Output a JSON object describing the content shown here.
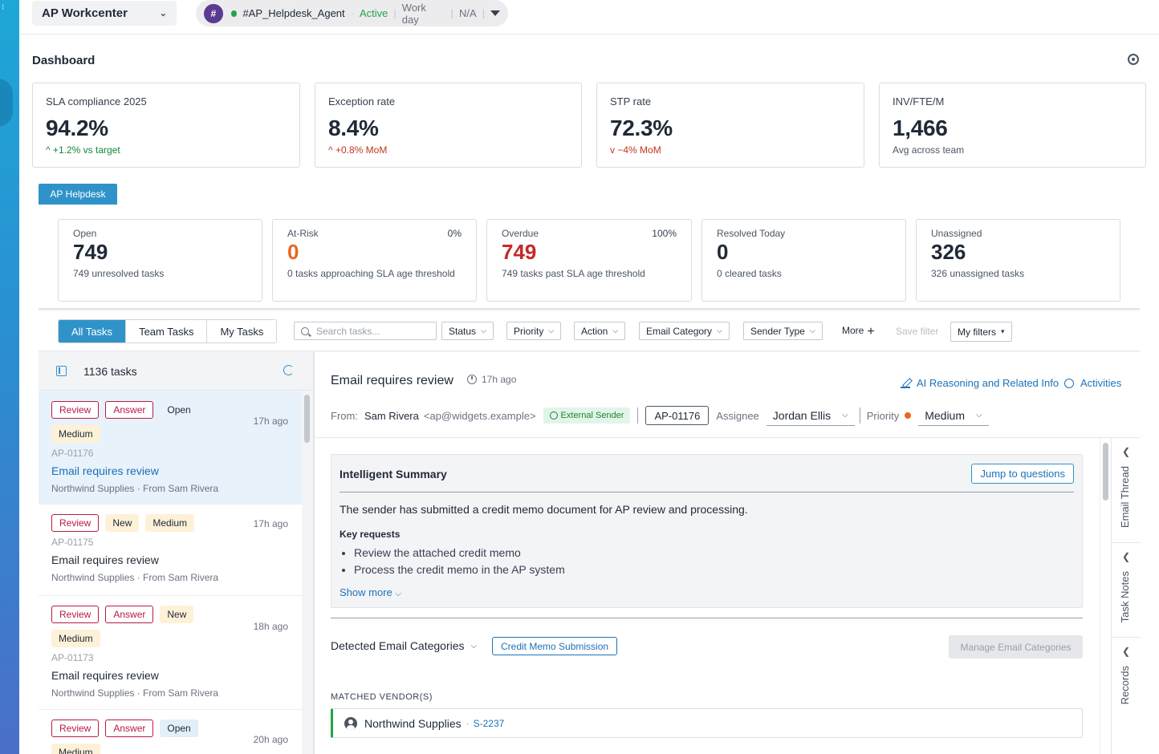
{
  "topbar": {
    "workcenter": "AP Workcenter",
    "agent_initial": "#",
    "agent_name": "#AP_Helpdesk_Agent",
    "status": "Active",
    "workday": "Work day",
    "na": "N/A"
  },
  "dashboard": {
    "title": "Dashboard",
    "kpis": [
      {
        "label": "SLA compliance 2025",
        "value": "94.2%",
        "delta": "+1.2% vs target",
        "arrow": "^"
      },
      {
        "label": "Exception rate",
        "value": "8.4%",
        "delta": "+0.8% MoM",
        "arrow": "^"
      },
      {
        "label": "STP rate",
        "value": "72.3%",
        "delta": "−4% MoM",
        "arrow": "v"
      },
      {
        "label": "INV/FTE/M",
        "value": "1,466",
        "delta": "Avg across team"
      }
    ]
  },
  "helpdesk": {
    "tab": "AP Helpdesk",
    "stats": [
      {
        "label": "Open",
        "value": "749",
        "sub": "749 unresolved tasks",
        "pct": ""
      },
      {
        "label": "At-Risk",
        "value": "0",
        "sub": "0 tasks approaching SLA age threshold",
        "pct": "0%"
      },
      {
        "label": "Overdue",
        "value": "749",
        "sub": "749 tasks past SLA age threshold",
        "pct": "100%"
      },
      {
        "label": "Resolved Today",
        "value": "0",
        "sub": "0 cleared tasks",
        "pct": ""
      },
      {
        "label": "Unassigned",
        "value": "326",
        "sub": "326 unassigned tasks",
        "pct": ""
      }
    ]
  },
  "filters": {
    "tabs": [
      "All Tasks",
      "Team Tasks",
      "My Tasks"
    ],
    "search_placeholder": "Search tasks...",
    "dropdowns": [
      "Status",
      "Priority",
      "Action",
      "Email Category",
      "Sender Type"
    ],
    "more": "More",
    "save_filter": "Save filter",
    "my_filters": "My filters"
  },
  "task_list": {
    "count": "1136 tasks",
    "items": [
      {
        "tags": [
          "Review",
          "Answer",
          "Open",
          "Medium"
        ],
        "time": "17h ago",
        "id": "AP-01176",
        "title": "Email requires review",
        "sub": "Northwind Supplies · From Sam Rivera"
      },
      {
        "tags": [
          "Review",
          "New",
          "Medium"
        ],
        "time": "17h ago",
        "id": "AP-01175",
        "title": "Email requires review",
        "sub": "Northwind Supplies · From Sam Rivera"
      },
      {
        "tags": [
          "Review",
          "Answer",
          "New",
          "Medium"
        ],
        "time": "18h ago",
        "id": "AP-01173",
        "title": "Email requires review",
        "sub": "Northwind Supplies · From Sam Rivera"
      },
      {
        "tags": [
          "Review",
          "Answer",
          "Open",
          "Medium"
        ],
        "time": "20h ago",
        "id": "",
        "title": "",
        "sub": ""
      }
    ]
  },
  "detail": {
    "title": "Email requires review",
    "time": "17h ago",
    "ai_link": "AI Reasoning and Related Info",
    "activities": "Activities",
    "from_label": "From:",
    "from_name": "Sam Rivera",
    "from_email": "<ap@widgets.example>",
    "external_badge": "External Sender",
    "ticket_id": "AP-01176",
    "assignee_label": "Assignee",
    "assignee": "Jordan Ellis",
    "priority_label": "Priority",
    "priority": "Medium",
    "summary": {
      "heading": "Intelligent Summary",
      "jump": "Jump to questions",
      "text": "The sender has submitted a credit memo document for AP review and processing.",
      "key_requests_label": "Key requests",
      "requests": [
        "Review the attached credit memo",
        "Process the credit memo in the AP system"
      ],
      "show_more": "Show more"
    },
    "categories_label": "Detected Email Categories",
    "category": "Credit Memo Submission",
    "manage_categories": "Manage Email Categories",
    "matched_vendors_label": "MATCHED VENDOR(S)",
    "vendor_name": "Northwind Supplies",
    "vendor_id": "S-2237",
    "side_tabs": [
      "Email Thread",
      "Task Notes",
      "Records"
    ]
  },
  "colors": {
    "accent": "#2f93c9",
    "link": "#1d72b8",
    "good": "#16873a",
    "bad": "#c2371e",
    "tag_red": "#b81b45"
  }
}
